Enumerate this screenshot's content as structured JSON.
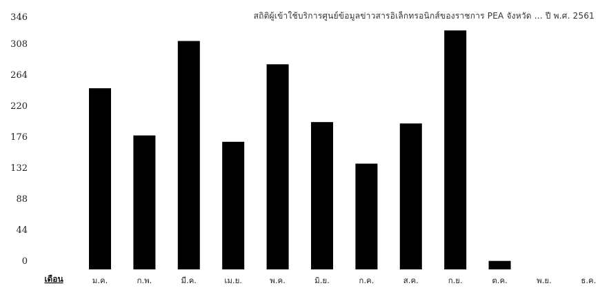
{
  "chart_data": {
    "type": "bar",
    "title": "สถิติผู้เข้าใช้บริการศูนย์ข้อมูลข่าวสารอิเล็กทรอนิกส์ของราชการ PEA จังหวัด ... ปี พ.ศ. 2561",
    "xlabel": "เดือน",
    "ylabel": "",
    "categories": [
      "ม.ค.",
      "ก.พ.",
      "มี.ค.",
      "เม.ย.",
      "พ.ค.",
      "มิ.ย.",
      "ก.ค.",
      "ส.ค.",
      "ก.ย.",
      "ต.ค.",
      "พ.ย.",
      "ธ.ค."
    ],
    "values": [
      257,
      190,
      324,
      181,
      291,
      209,
      150,
      207,
      339,
      12,
      0,
      0
    ],
    "ylim": [
      0,
      346
    ],
    "yticks": [
      0,
      44,
      88,
      132,
      176,
      220,
      264,
      308,
      346
    ],
    "bar_color": "#000000",
    "grid": false,
    "legend": "none"
  }
}
